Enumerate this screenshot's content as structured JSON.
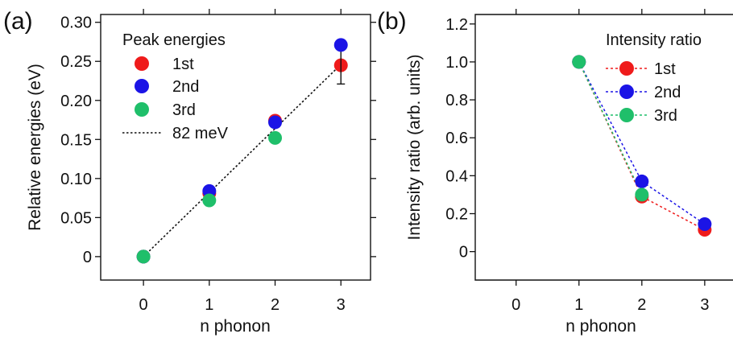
{
  "chart_data": [
    {
      "type": "scatter",
      "panel_label": "(a)",
      "xlabel": "n phonon",
      "ylabel": "Relative energies (eV)",
      "xlim": [
        -0.65,
        3.45
      ],
      "ylim": [
        -0.03,
        0.31
      ],
      "xticks": [
        "0",
        "1",
        "2",
        "3"
      ],
      "yticks": [
        "0",
        "0.05",
        "0.10",
        "0.15",
        "0.20",
        "0.25",
        "0.30"
      ],
      "legend_title": "Peak energies",
      "legend_position": "top-left",
      "grid": false,
      "series": [
        {
          "name": "1st",
          "color": "#ef1b1b",
          "x": [
            0,
            1,
            2,
            3
          ],
          "y": [
            0,
            0.081,
            0.174,
            0.245
          ],
          "yerr": [
            0,
            0.005,
            0.004,
            0.024
          ]
        },
        {
          "name": "2nd",
          "color": "#1b14e6",
          "x": [
            0,
            1,
            2,
            3
          ],
          "y": [
            0,
            0.084,
            0.172,
            0.271
          ]
        },
        {
          "name": "3rd",
          "color": "#1fbf6a",
          "x": [
            0,
            1,
            2
          ],
          "y": [
            0,
            0.072,
            0.152
          ]
        }
      ],
      "fit_line": {
        "name": "82 meV",
        "slope": 0.082,
        "x": [
          0,
          3
        ]
      }
    },
    {
      "type": "line",
      "panel_label": "(b)",
      "xlabel": "n phonon",
      "ylabel": "Intensity ratio (arb. units)",
      "xlim": [
        -0.65,
        3.45
      ],
      "ylim": [
        -0.15,
        1.25
      ],
      "xticks": [
        "0",
        "1",
        "2",
        "3"
      ],
      "yticks": [
        "0",
        "0.2",
        "0.4",
        "0.6",
        "0.8",
        "1.0",
        "1.2"
      ],
      "legend_title": "Intensity ratio",
      "legend_position": "top-right",
      "grid": false,
      "series": [
        {
          "name": "1st",
          "color": "#ef1b1b",
          "x": [
            1,
            2,
            3
          ],
          "y": [
            1.0,
            0.29,
            0.115
          ]
        },
        {
          "name": "2nd",
          "color": "#1b14e6",
          "x": [
            1,
            2,
            3
          ],
          "y": [
            1.0,
            0.37,
            0.145
          ]
        },
        {
          "name": "3rd",
          "color": "#1fbf6a",
          "x": [
            1,
            2
          ],
          "y": [
            1.0,
            0.3
          ]
        }
      ]
    }
  ]
}
